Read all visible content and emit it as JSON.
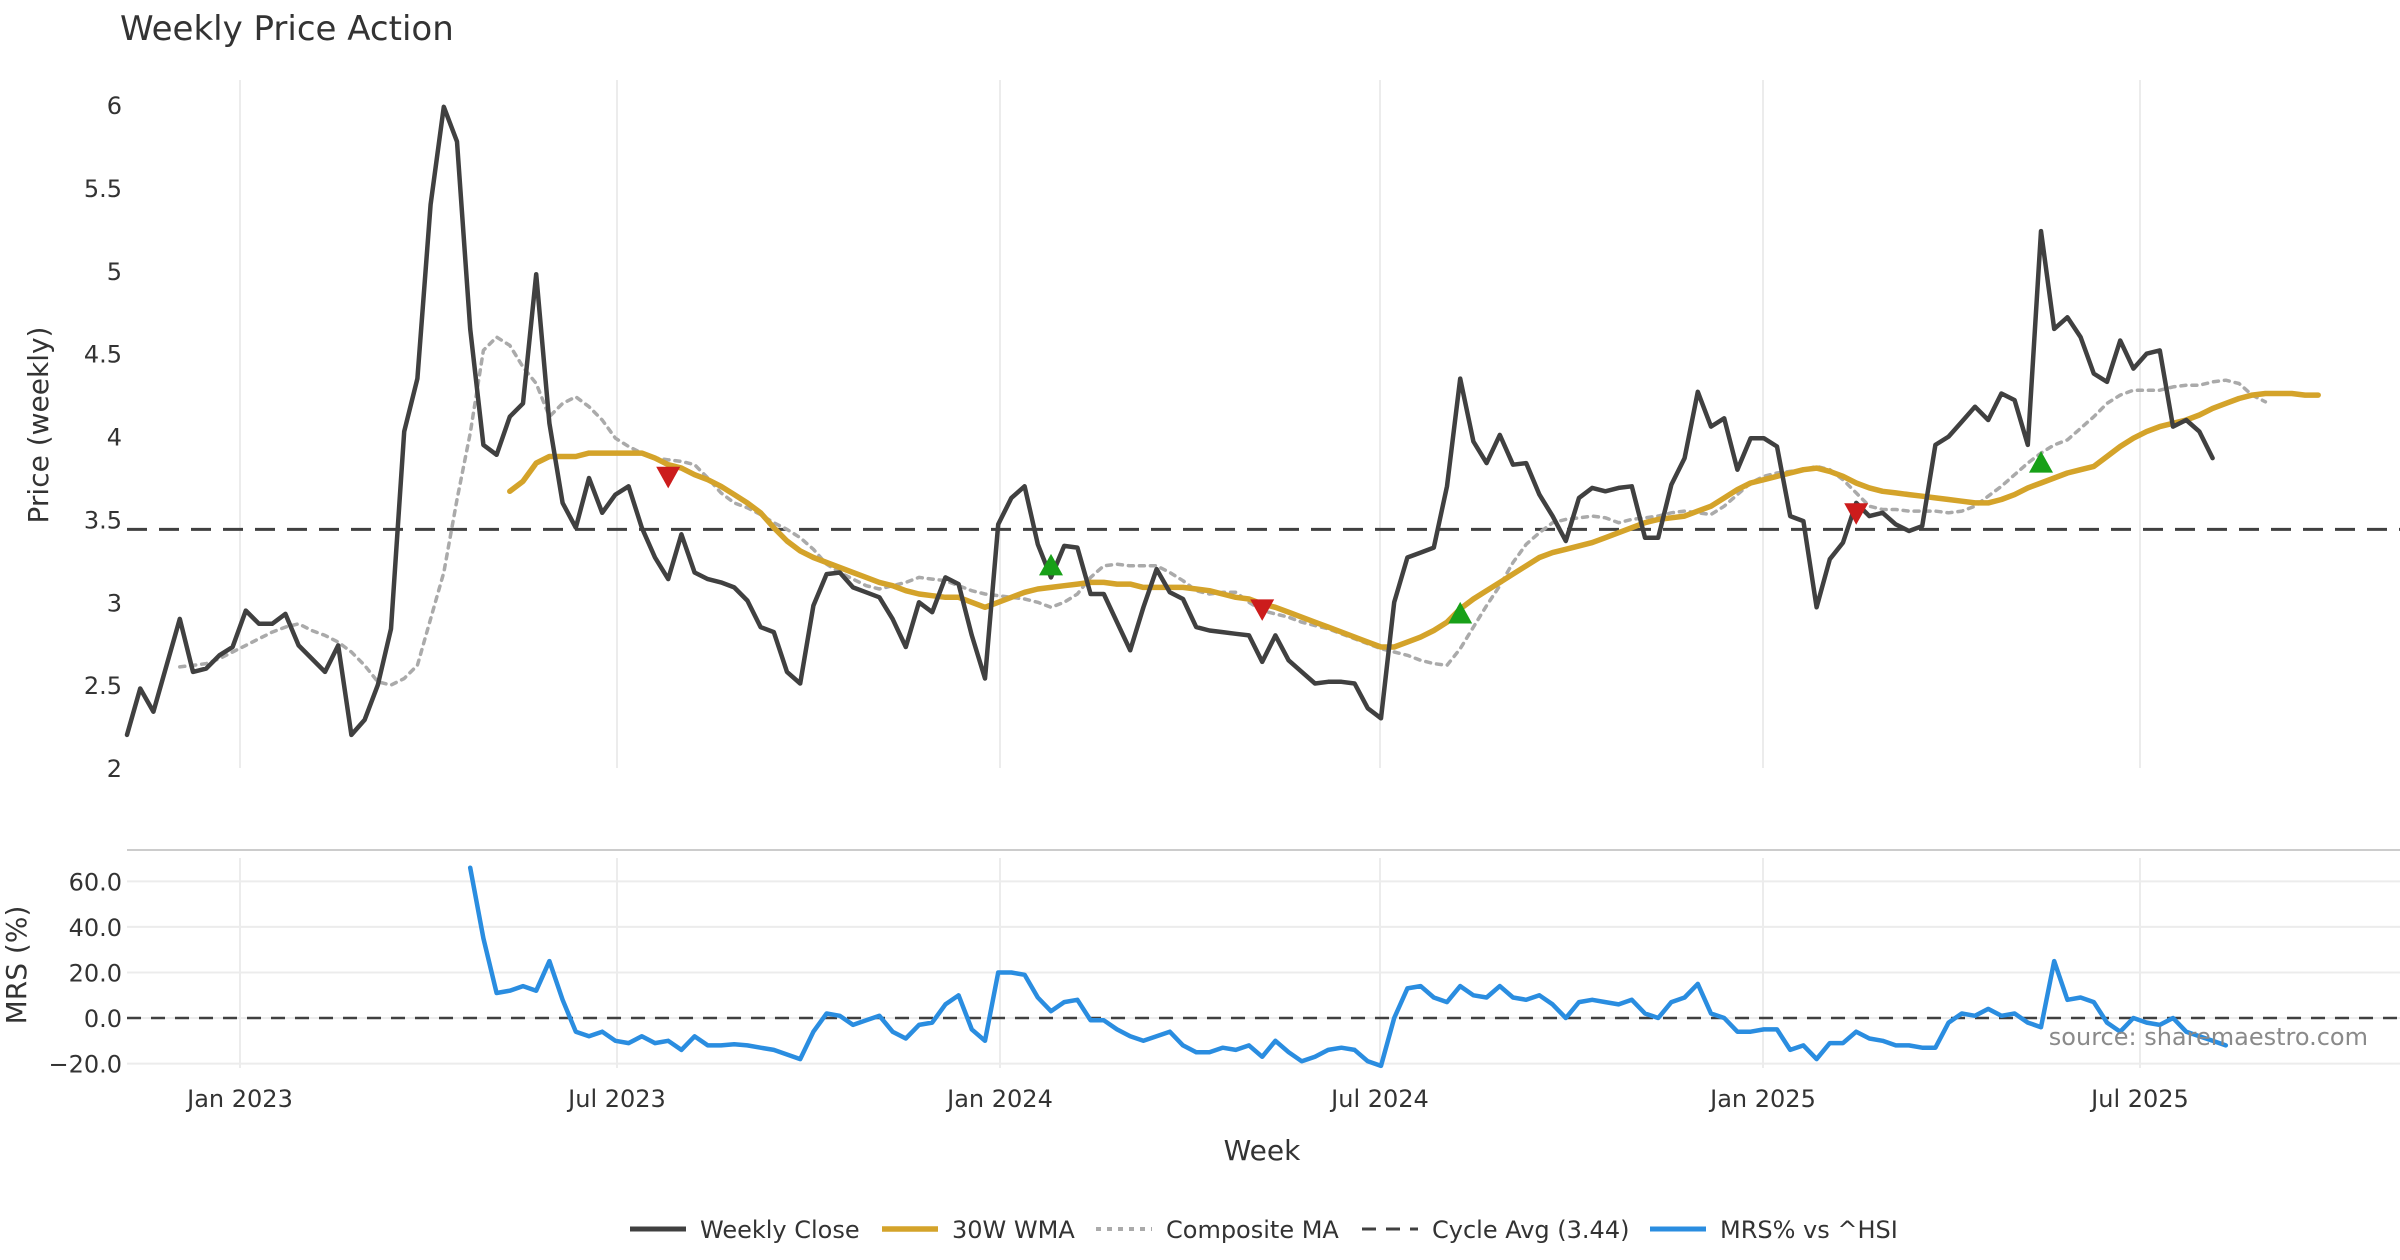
{
  "chart_data": {
    "title": "Weekly Price Action",
    "type": "line",
    "source_text": "source: sharemaestro.com",
    "xlabel": "Week",
    "x_ticks": [
      "Jan 2023",
      "Jul 2023",
      "Jan 2024",
      "Jul 2024",
      "Jan 2025",
      "Jul 2025"
    ],
    "price_panel": {
      "ylabel": "Price (weekly)",
      "ylim": [
        2,
        6.2
      ],
      "y_ticks": [
        "2",
        "2.5",
        "3",
        "3.5",
        "4",
        "4.5",
        "5",
        "5.5",
        "6"
      ],
      "cycle_avg": 3.44,
      "series": [
        {
          "name": "Weekly Close",
          "color": "#404040",
          "values": [
            2.2,
            2.48,
            2.34,
            2.62,
            2.9,
            2.58,
            2.6,
            2.68,
            2.73,
            2.95,
            2.87,
            2.87,
            2.93,
            2.74,
            2.66,
            2.58,
            2.74,
            2.2,
            2.29,
            2.5,
            2.84,
            4.03,
            4.35,
            5.4,
            5.99,
            5.78,
            4.65,
            3.95,
            3.89,
            4.12,
            4.2,
            4.98,
            4.08,
            3.6,
            3.45,
            3.75,
            3.54,
            3.65,
            3.7,
            3.45,
            3.27,
            3.14,
            3.41,
            3.18,
            3.14,
            3.12,
            3.09,
            3.01,
            2.85,
            2.82,
            2.58,
            2.51,
            2.98,
            3.17,
            3.18,
            3.09,
            3.06,
            3.03,
            2.9,
            2.73,
            3.0,
            2.94,
            3.15,
            3.11,
            2.8,
            2.54,
            3.47,
            3.63,
            3.7,
            3.35,
            3.15,
            3.34,
            3.33,
            3.05,
            3.05,
            2.88,
            2.71,
            2.97,
            3.2,
            3.06,
            3.02,
            2.85,
            2.83,
            2.82,
            2.81,
            2.8,
            2.64,
            2.8,
            2.65,
            2.58,
            2.51,
            2.52,
            2.52,
            2.51,
            2.36,
            2.3,
            3.0,
            3.27,
            3.3,
            3.33,
            3.7,
            4.35,
            3.97,
            3.84,
            4.01,
            3.83,
            3.84,
            3.65,
            3.52,
            3.37,
            3.63,
            3.69,
            3.67,
            3.69,
            3.7,
            3.39,
            3.39,
            3.71,
            3.87,
            4.27,
            4.06,
            4.11,
            3.8,
            3.99,
            3.99,
            3.94,
            3.52,
            3.49,
            2.97,
            3.26,
            3.36,
            3.6,
            3.52,
            3.54,
            3.47,
            3.43,
            3.46,
            3.95,
            4.0,
            4.09,
            4.18,
            4.1,
            4.26,
            4.22,
            3.95,
            5.24,
            4.65,
            4.72,
            4.6,
            4.38,
            4.33,
            4.58,
            4.41,
            4.5,
            4.52,
            4.06,
            4.1,
            4.03,
            3.87
          ]
        },
        {
          "name": "30W WMA",
          "color": "#d4a32a",
          "start_index": 29,
          "values": [
            3.67,
            3.73,
            3.84,
            3.88,
            3.88,
            3.88,
            3.9,
            3.9,
            3.9,
            3.9,
            3.9,
            3.87,
            3.83,
            3.81,
            3.77,
            3.74,
            3.7,
            3.65,
            3.6,
            3.54,
            3.45,
            3.37,
            3.31,
            3.27,
            3.24,
            3.21,
            3.18,
            3.15,
            3.12,
            3.1,
            3.07,
            3.05,
            3.04,
            3.03,
            3.03,
            3.0,
            2.97,
            3.0,
            3.03,
            3.06,
            3.08,
            3.09,
            3.1,
            3.11,
            3.12,
            3.12,
            3.11,
            3.11,
            3.09,
            3.09,
            3.09,
            3.09,
            3.08,
            3.07,
            3.05,
            3.03,
            3.02,
            2.99,
            2.97,
            2.94,
            2.91,
            2.88,
            2.85,
            2.82,
            2.79,
            2.76,
            2.73,
            2.73,
            2.76,
            2.79,
            2.83,
            2.88,
            2.96,
            3.02,
            3.07,
            3.12,
            3.17,
            3.22,
            3.27,
            3.3,
            3.32,
            3.34,
            3.36,
            3.39,
            3.42,
            3.45,
            3.48,
            3.5,
            3.51,
            3.52,
            3.55,
            3.58,
            3.63,
            3.68,
            3.72,
            3.74,
            3.76,
            3.78,
            3.8,
            3.81,
            3.79,
            3.76,
            3.72,
            3.69,
            3.67,
            3.66,
            3.65,
            3.64,
            3.63,
            3.62,
            3.61,
            3.6,
            3.6,
            3.62,
            3.65,
            3.69,
            3.72,
            3.75,
            3.78,
            3.8,
            3.82,
            3.88,
            3.94,
            3.99,
            4.03,
            4.06,
            4.08,
            4.1,
            4.13,
            4.17,
            4.2,
            4.23,
            4.25,
            4.26,
            4.26,
            4.26,
            4.25,
            4.25
          ]
        },
        {
          "name": "Composite MA",
          "color": "#aaaaaa",
          "start_index": 4,
          "values": [
            2.61,
            2.62,
            2.63,
            2.66,
            2.7,
            2.74,
            2.78,
            2.82,
            2.85,
            2.87,
            2.83,
            2.8,
            2.76,
            2.7,
            2.62,
            2.52,
            2.5,
            2.54,
            2.62,
            2.9,
            3.18,
            3.62,
            4.02,
            4.52,
            4.6,
            4.55,
            4.42,
            4.32,
            4.12,
            4.2,
            4.24,
            4.18,
            4.1,
            3.99,
            3.94,
            3.9,
            3.87,
            3.86,
            3.85,
            3.83,
            3.75,
            3.66,
            3.6,
            3.57,
            3.53,
            3.48,
            3.44,
            3.39,
            3.32,
            3.23,
            3.18,
            3.14,
            3.1,
            3.08,
            3.1,
            3.12,
            3.15,
            3.14,
            3.13,
            3.1,
            3.07,
            3.05,
            3.04,
            3.03,
            3.02,
            3.0,
            2.97,
            3.0,
            3.05,
            3.15,
            3.22,
            3.23,
            3.22,
            3.22,
            3.22,
            3.18,
            3.13,
            3.07,
            3.05,
            3.06,
            3.06,
            3.0,
            2.95,
            2.93,
            2.91,
            2.88,
            2.86,
            2.84,
            2.81,
            2.78,
            2.75,
            2.72,
            2.7,
            2.68,
            2.65,
            2.63,
            2.62,
            2.72,
            2.85,
            2.98,
            3.1,
            3.24,
            3.35,
            3.42,
            3.48,
            3.5,
            3.51,
            3.52,
            3.51,
            3.48,
            3.5,
            3.51,
            3.52,
            3.54,
            3.55,
            3.54,
            3.53,
            3.58,
            3.65,
            3.72,
            3.76,
            3.78,
            3.79,
            3.8,
            3.82,
            3.8,
            3.74,
            3.66,
            3.58,
            3.56,
            3.56,
            3.55,
            3.55,
            3.55,
            3.54,
            3.55,
            3.58,
            3.64,
            3.7,
            3.77,
            3.84,
            3.9,
            3.95,
            3.98,
            4.05,
            4.12,
            4.2,
            4.25,
            4.28,
            4.28,
            4.28,
            4.3,
            4.31,
            4.31,
            4.33,
            4.34,
            4.32,
            4.25,
            4.21
          ]
        }
      ],
      "markers": [
        {
          "direction": "down",
          "index": 41,
          "value": 3.76
        },
        {
          "direction": "up",
          "index": 70,
          "value": 3.22
        },
        {
          "direction": "down",
          "index": 86,
          "value": 2.96
        },
        {
          "direction": "up",
          "index": 101,
          "value": 2.93
        },
        {
          "direction": "down",
          "index": 131,
          "value": 3.54
        },
        {
          "direction": "up",
          "index": 145,
          "value": 3.84
        }
      ]
    },
    "mrs_panel": {
      "ylabel": "MRS (%)",
      "ylim": [
        -25,
        72
      ],
      "y_ticks": [
        "60.0",
        "40.0",
        "20.0",
        "0.0",
        "−20.0"
      ],
      "series": {
        "name": "MRS% vs ^HSI",
        "color": "#2a8de0",
        "start_index": 26,
        "values": [
          66,
          35,
          11,
          12,
          14,
          12,
          25,
          8,
          -6,
          -8,
          -6,
          -10,
          -11,
          -8,
          -11,
          -10,
          -14,
          -8,
          -12,
          -12,
          -11.5,
          -12,
          -13,
          -14,
          -16,
          -18,
          -6,
          2,
          1,
          -3,
          -1,
          1,
          -6,
          -9,
          -3,
          -2,
          6,
          10,
          -5,
          -10,
          20,
          20,
          19,
          9,
          3,
          7,
          8,
          -1,
          -1,
          -5,
          -8,
          -10,
          -8,
          -6,
          -12,
          -15,
          -15,
          -13,
          -14,
          -12,
          -17,
          -10,
          -15,
          -19,
          -17,
          -14,
          -13,
          -14,
          -19,
          -21,
          0,
          13,
          14,
          9,
          7,
          14,
          10,
          9,
          14,
          9,
          8,
          10,
          6,
          0,
          7,
          8,
          7,
          6,
          8,
          2,
          0,
          7,
          9,
          15,
          2,
          0,
          -6,
          -6,
          -5,
          -5,
          -14,
          -12,
          -18,
          -11,
          -11,
          -6,
          -9,
          -10,
          -12,
          -12,
          -13,
          -13,
          -2,
          2,
          1,
          4,
          1,
          2,
          -2,
          -4,
          25,
          8,
          9,
          7,
          -2,
          -6,
          0,
          -2,
          -3,
          0,
          -6,
          -8,
          -10,
          -12
        ]
      }
    },
    "legend": [
      "Weekly Close",
      "30W WMA",
      "Composite MA",
      "Cycle Avg (3.44)",
      "MRS% vs ^HSI"
    ]
  }
}
